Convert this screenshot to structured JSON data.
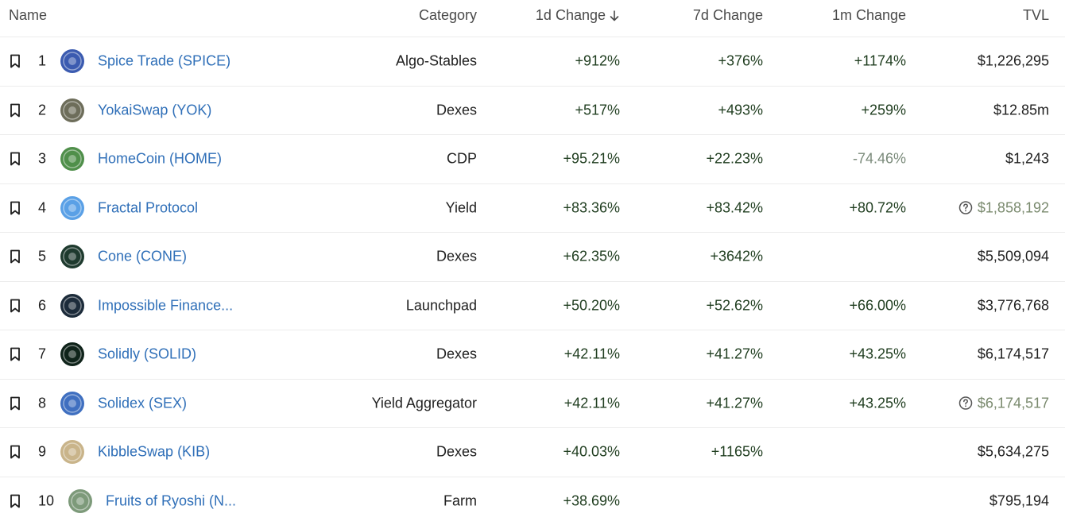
{
  "header": {
    "name": "Name",
    "category": "Category",
    "change_1d": "1d Change",
    "change_7d": "7d Change",
    "change_1m": "1m Change",
    "tvl": "TVL"
  },
  "rows": [
    {
      "rank": "1",
      "name": "Spice Trade (SPICE)",
      "category": "Algo-Stables",
      "c1d": "+912%",
      "c7d": "+376%",
      "c1m": "+1174%",
      "tvl": "$1,226,295",
      "logo": "spice-trade-logo",
      "logo_color": "#3b5bb0"
    },
    {
      "rank": "2",
      "name": "YokaiSwap (YOK)",
      "category": "Dexes",
      "c1d": "+517%",
      "c7d": "+493%",
      "c1m": "+259%",
      "tvl": "$12.85m",
      "logo": "yokaiswap-logo",
      "logo_color": "#6d6d5a"
    },
    {
      "rank": "3",
      "name": "HomeCoin (HOME)",
      "category": "CDP",
      "c1d": "+95.21%",
      "c7d": "+22.23%",
      "c1m": "-74.46%",
      "tvl": "$1,243",
      "logo": "homecoin-logo",
      "logo_color": "#4f8f4a"
    },
    {
      "rank": "4",
      "name": "Fractal Protocol",
      "category": "Yield",
      "c1d": "+83.36%",
      "c7d": "+83.42%",
      "c1m": "+80.72%",
      "tvl": "$1,858,192",
      "logo": "fractal-protocol-logo",
      "logo_color": "#5aa0e6"
    },
    {
      "rank": "5",
      "name": "Cone (CONE)",
      "category": "Dexes",
      "c1d": "+62.35%",
      "c7d": "+3642%",
      "c1m": "",
      "tvl": "$5,509,094",
      "logo": "cone-logo",
      "logo_color": "#1e3a2e"
    },
    {
      "rank": "6",
      "name": "Impossible Finance...",
      "category": "Launchpad",
      "c1d": "+50.20%",
      "c7d": "+52.62%",
      "c1m": "+66.00%",
      "tvl": "$3,776,768",
      "logo": "impossible-finance-logo",
      "logo_color": "#1c2b3a"
    },
    {
      "rank": "7",
      "name": "Solidly (SOLID)",
      "category": "Dexes",
      "c1d": "+42.11%",
      "c7d": "+41.27%",
      "c1m": "+43.25%",
      "tvl": "$6,174,517",
      "logo": "solidly-logo",
      "logo_color": "#0f231a"
    },
    {
      "rank": "8",
      "name": "Solidex (SEX)",
      "category": "Yield Aggregator",
      "c1d": "+42.11%",
      "c7d": "+41.27%",
      "c1m": "+43.25%",
      "tvl": "$6,174,517",
      "logo": "solidex-logo",
      "logo_color": "#3f6fc0"
    },
    {
      "rank": "9",
      "name": "KibbleSwap (KIB)",
      "category": "Dexes",
      "c1d": "+40.03%",
      "c7d": "+1165%",
      "c1m": "",
      "tvl": "$5,634,275",
      "logo": "kibbleswap-logo",
      "logo_color": "#c9b48a"
    },
    {
      "rank": "10",
      "name": "Fruits of Ryoshi (N...",
      "category": "Farm",
      "c1d": "+38.69%",
      "c7d": "",
      "c1m": "",
      "tvl": "$795,194",
      "logo": "fruits-of-ryoshi-logo",
      "logo_color": "#7d9a7a"
    }
  ],
  "colors": {
    "link": "#2f6fb8",
    "positive": "#1f3d1f",
    "negative": "#7a8a7a",
    "muted_tvl": "#7a8a6e",
    "border": "#ececec"
  },
  "icons": {
    "sort": "arrow-down-icon",
    "bookmark": "bookmark-icon",
    "info": "question-circle-icon"
  }
}
